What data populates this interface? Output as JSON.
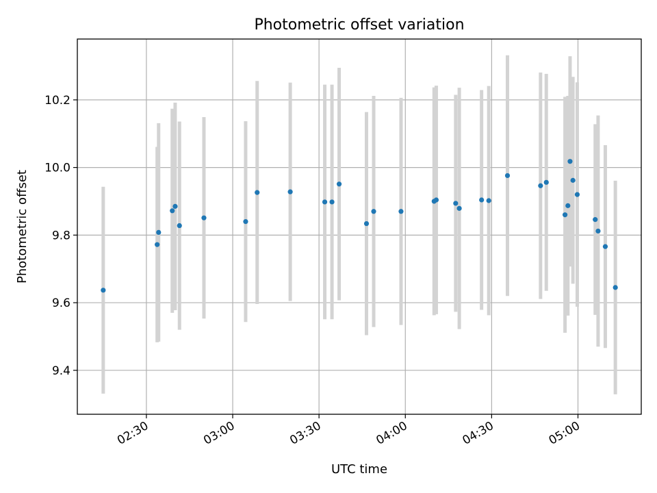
{
  "chart_data": {
    "type": "scatter",
    "title": "Photometric offset variation",
    "xlabel": "UTC time",
    "ylabel": "Photometric offset",
    "grid": true,
    "legend": "none",
    "colors": {
      "marker": "#1f77b4",
      "errorbar": "#d3d3d3",
      "grid": "#b0b0b0"
    },
    "xlim": [
      "02:06",
      "05:22"
    ],
    "ylim": [
      9.27,
      10.38
    ],
    "x_ticks": [
      "02:30",
      "03:00",
      "03:30",
      "04:00",
      "04:30",
      "05:00"
    ],
    "y_ticks": [
      9.4,
      9.6,
      9.8,
      10.0,
      10.2
    ],
    "y_tick_labels": [
      "9.4",
      "9.6",
      "9.8",
      "10.0",
      "10.2"
    ],
    "series": [
      {
        "points": [
          {
            "x": "02:15:00",
            "y": 9.637,
            "err": 0.306
          },
          {
            "x": "02:33:45",
            "y": 9.772,
            "err": 0.289
          },
          {
            "x": "02:34:15",
            "y": 9.808,
            "err": 0.323
          },
          {
            "x": "02:39:00",
            "y": 9.872,
            "err": 0.302
          },
          {
            "x": "02:40:00",
            "y": 9.885,
            "err": 0.307
          },
          {
            "x": "02:41:30",
            "y": 9.828,
            "err": 0.308
          },
          {
            "x": "02:50:00",
            "y": 9.851,
            "err": 0.298
          },
          {
            "x": "03:04:30",
            "y": 9.84,
            "err": 0.297
          },
          {
            "x": "03:08:30",
            "y": 9.926,
            "err": 0.33
          },
          {
            "x": "03:20:00",
            "y": 9.928,
            "err": 0.323
          },
          {
            "x": "03:32:00",
            "y": 9.898,
            "err": 0.347
          },
          {
            "x": "03:34:30",
            "y": 9.898,
            "err": 0.347
          },
          {
            "x": "03:37:00",
            "y": 9.951,
            "err": 0.344
          },
          {
            "x": "03:46:30",
            "y": 9.834,
            "err": 0.33
          },
          {
            "x": "03:49:00",
            "y": 9.87,
            "err": 0.342
          },
          {
            "x": "03:58:30",
            "y": 9.87,
            "err": 0.336
          },
          {
            "x": "04:10:00",
            "y": 9.9,
            "err": 0.337
          },
          {
            "x": "04:10:45",
            "y": 9.904,
            "err": 0.338
          },
          {
            "x": "04:17:30",
            "y": 9.894,
            "err": 0.321
          },
          {
            "x": "04:18:45",
            "y": 9.879,
            "err": 0.357
          },
          {
            "x": "04:26:30",
            "y": 9.904,
            "err": 0.325
          },
          {
            "x": "04:29:00",
            "y": 9.902,
            "err": 0.339
          },
          {
            "x": "04:35:30",
            "y": 9.976,
            "err": 0.356
          },
          {
            "x": "04:47:00",
            "y": 9.946,
            "err": 0.335
          },
          {
            "x": "04:49:00",
            "y": 9.956,
            "err": 0.321
          },
          {
            "x": "04:55:30",
            "y": 9.86,
            "err": 0.349
          },
          {
            "x": "04:56:30",
            "y": 9.887,
            "err": 0.325
          },
          {
            "x": "04:57:15",
            "y": 10.018,
            "err": 0.311
          },
          {
            "x": "04:58:15",
            "y": 9.962,
            "err": 0.306
          },
          {
            "x": "04:59:45",
            "y": 9.92,
            "err": 0.332
          },
          {
            "x": "05:06:00",
            "y": 9.846,
            "err": 0.282
          },
          {
            "x": "05:07:00",
            "y": 9.812,
            "err": 0.342
          },
          {
            "x": "05:09:30",
            "y": 9.766,
            "err": 0.3
          },
          {
            "x": "05:13:00",
            "y": 9.645,
            "err": 0.316
          }
        ]
      }
    ]
  }
}
